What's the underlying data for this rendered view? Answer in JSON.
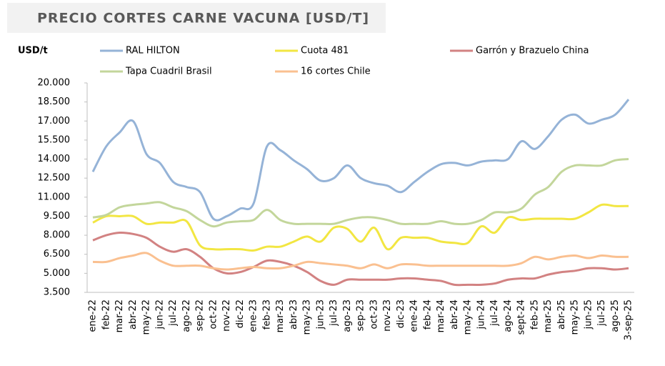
{
  "chart_data": {
    "type": "line",
    "title": "PRECIO CORTES CARNE VACUNA [USD/T]",
    "y_label": "USD/t",
    "categories": [
      "ene-22",
      "feb-22",
      "mar-22",
      "abr-22",
      "may-22",
      "jun-22",
      "jul-22",
      "ago-22",
      "sep-22",
      "oct-22",
      "nov-22",
      "dic-22",
      "ene-23",
      "feb-23",
      "mar-23",
      "abr-23",
      "may-23",
      "jun-23",
      "jul-23",
      "ago-23",
      "sep-23",
      "oct-23",
      "nov-23",
      "dic-23",
      "ene-24",
      "feb-24",
      "mar-24",
      "abr-24",
      "may-24",
      "jun-24",
      "jul-24",
      "ago-24",
      "sept-24",
      "feb-25",
      "mar-25",
      "abr-25",
      "may-25",
      "jun-25",
      "jul-25",
      "ago-25",
      "3-sep-25"
    ],
    "series": [
      {
        "name": "RAL HILTON",
        "color": "#95b3d7",
        "values": [
          13000,
          15000,
          16100,
          17000,
          14400,
          13700,
          12200,
          11800,
          11400,
          9300,
          9500,
          10100,
          10500,
          15000,
          14700,
          13900,
          13200,
          12300,
          12500,
          13500,
          12500,
          12100,
          11900,
          11400,
          12200,
          13000,
          13600,
          13700,
          13500,
          13800,
          13900,
          14000,
          15400,
          14800,
          15800,
          17100,
          17500,
          16800,
          17100,
          17500,
          18700
        ]
      },
      {
        "name": "Cuota 481",
        "color": "#f2e642",
        "values": [
          9000,
          9500,
          9500,
          9500,
          8900,
          9000,
          9000,
          9100,
          7200,
          6900,
          6900,
          6900,
          6800,
          7100,
          7100,
          7500,
          7900,
          7500,
          8600,
          8500,
          7500,
          8600,
          6900,
          7800,
          7800,
          7800,
          7500,
          7400,
          7400,
          8700,
          8200,
          9400,
          9200,
          9300,
          9300,
          9300,
          9300,
          9800,
          10400,
          10300,
          10300
        ]
      },
      {
        "name": "Garrón y Brazuelo China",
        "color": "#d28282",
        "values": [
          7600,
          8000,
          8200,
          8100,
          7800,
          7100,
          6700,
          6900,
          6300,
          5400,
          5000,
          5100,
          5500,
          6000,
          5900,
          5600,
          5100,
          4400,
          4100,
          4500,
          4500,
          4500,
          4500,
          4600,
          4600,
          4500,
          4400,
          4100,
          4100,
          4100,
          4200,
          4500,
          4600,
          4600,
          4900,
          5100,
          5200,
          5400,
          5400,
          5300,
          5400
        ]
      },
      {
        "name": "Tapa Cuadril Brasil",
        "color": "#c3d69b",
        "values": [
          9400,
          9600,
          10200,
          10400,
          10500,
          10600,
          10200,
          9900,
          9200,
          8700,
          9000,
          9100,
          9200,
          10000,
          9200,
          8900,
          8900,
          8900,
          8900,
          9200,
          9400,
          9400,
          9200,
          8900,
          8900,
          8900,
          9100,
          8900,
          8900,
          9200,
          9800,
          9800,
          10100,
          11200,
          11800,
          13000,
          13500,
          13500,
          13500,
          13900,
          14000
        ]
      },
      {
        "name": "16 cortes Chile",
        "color": "#fac090",
        "values": [
          5900,
          5900,
          6200,
          6400,
          6600,
          6000,
          5600,
          5600,
          5600,
          5400,
          5300,
          5400,
          5500,
          5400,
          5400,
          5600,
          5900,
          5800,
          5700,
          5600,
          5400,
          5700,
          5400,
          5700,
          5700,
          5600,
          5600,
          5600,
          5600,
          5600,
          5600,
          5600,
          5800,
          6300,
          6100,
          6300,
          6400,
          6200,
          6400,
          6300,
          6300
        ]
      }
    ],
    "ylim": [
      3500,
      20000
    ],
    "yticks": [
      {
        "value": 3500,
        "label": "3.500"
      },
      {
        "value": 5000,
        "label": "5.000"
      },
      {
        "value": 6500,
        "label": "6.500"
      },
      {
        "value": 8000,
        "label": "8.000"
      },
      {
        "value": 9500,
        "label": "9.500"
      },
      {
        "value": 11000,
        "label": "11.000"
      },
      {
        "value": 12500,
        "label": "12.500"
      },
      {
        "value": 14000,
        "label": "14.000"
      },
      {
        "value": 15500,
        "label": "15.500"
      },
      {
        "value": 17000,
        "label": "17.000"
      },
      {
        "value": 18500,
        "label": "18.500"
      },
      {
        "value": 20000,
        "label": "20.000"
      }
    ],
    "grid": false,
    "legend": "top"
  }
}
